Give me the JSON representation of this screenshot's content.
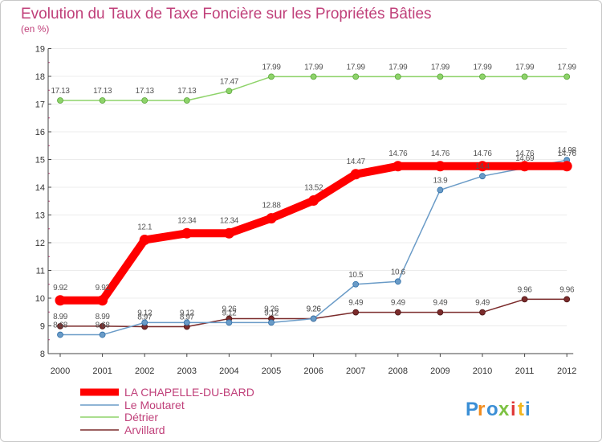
{
  "chart_data": {
    "type": "line",
    "title": "Evolution du Taux de Taxe Foncière sur les Propriétés Bâties",
    "subtitle": "(en %)",
    "x": [
      "2000",
      "2001",
      "2002",
      "2003",
      "2004",
      "2005",
      "2006",
      "2007",
      "2008",
      "2009",
      "2010",
      "2011",
      "2012"
    ],
    "ylim": [
      8,
      19
    ],
    "yticks": [
      "8",
      "9",
      "10",
      "11",
      "12",
      "13",
      "14",
      "15",
      "16",
      "17",
      "18",
      "19"
    ],
    "series": [
      {
        "name": "LA CHAPELLE-DU-BARD",
        "color": "#ff0000",
        "values": [
          9.92,
          9.92,
          12.1,
          12.34,
          12.34,
          12.88,
          13.52,
          14.47,
          14.76,
          14.76,
          14.76,
          14.76,
          14.76
        ],
        "labels": [
          "9.92",
          "9.92",
          "12.1",
          "12.34",
          "12.34",
          "12.88",
          "13.52",
          "14.47",
          "14.76",
          "14.76",
          "14.76",
          "14.76",
          "14.76"
        ]
      },
      {
        "name": "Le Moutaret",
        "color": "#6a9bc7",
        "values": [
          8.68,
          8.68,
          9.12,
          9.12,
          9.12,
          9.12,
          9.26,
          10.5,
          10.6,
          13.9,
          14.4,
          14.69,
          14.98
        ],
        "labels": [
          "8.68",
          "8.68",
          "9.12",
          "9.12",
          "9.12",
          "9.12",
          "9.26",
          "10.5",
          "10.6",
          "13.9",
          "14.4",
          "14.69",
          "14.98"
        ]
      },
      {
        "name": "Détrier",
        "color": "#8ed36a",
        "values": [
          17.13,
          17.13,
          17.13,
          17.13,
          17.47,
          17.99,
          17.99,
          17.99,
          17.99,
          17.99,
          17.99,
          17.99,
          17.99
        ],
        "labels": [
          "17.13",
          "17.13",
          "17.13",
          "17.13",
          "17.47",
          "17.99",
          "17.99",
          "17.99",
          "17.99",
          "17.99",
          "17.99",
          "17.99",
          "17.99"
        ]
      },
      {
        "name": "Arvillard",
        "color": "#7b2b2b",
        "values": [
          8.99,
          8.99,
          8.97,
          8.97,
          9.26,
          9.26,
          9.26,
          9.49,
          9.49,
          9.49,
          9.49,
          9.96,
          9.96
        ],
        "labels": [
          "8.99",
          "8.99",
          "8.97",
          "8.97",
          "9.26",
          "9.26",
          "9.26",
          "9.49",
          "9.49",
          "9.49",
          "9.49",
          "9.96",
          "9.96"
        ]
      }
    ],
    "legend_position": "bottom-left"
  },
  "logo": {
    "text": "Proxiti",
    "letters": [
      "P",
      "r",
      "o",
      "x",
      "i",
      "t",
      "i"
    ],
    "colors": [
      "#3b8fd6",
      "#f28c1e",
      "#3b8fd6",
      "#7dc243",
      "#e03a3a",
      "#f2b61e",
      "#3b8fd6"
    ]
  }
}
